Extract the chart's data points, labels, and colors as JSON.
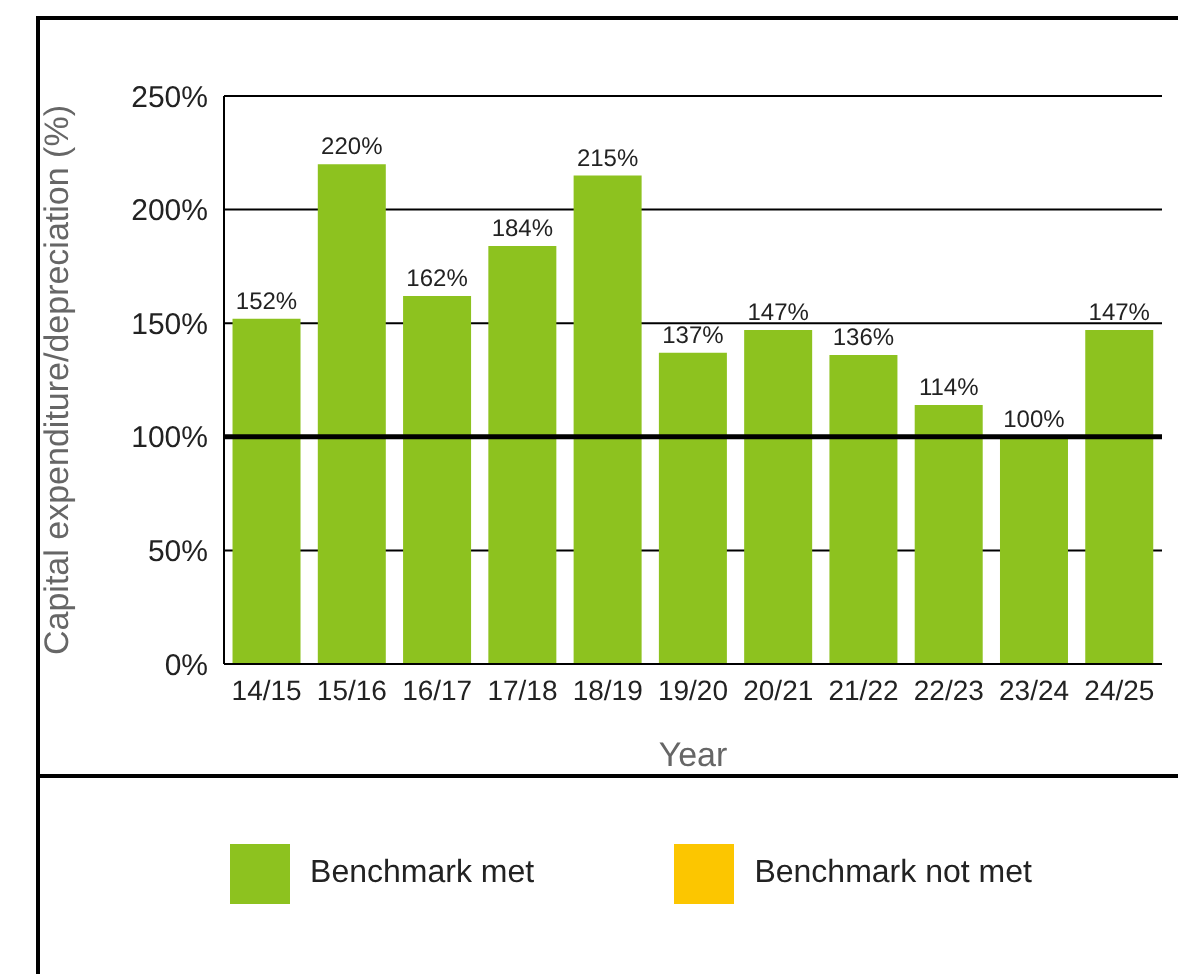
{
  "chart_data": {
    "type": "bar",
    "xlabel": "Year",
    "ylabel": "Capital expenditure/depreciation (%)",
    "categories": [
      "14/15",
      "15/16",
      "16/17",
      "17/18",
      "18/19",
      "19/20",
      "20/21",
      "21/22",
      "22/23",
      "23/24",
      "24/25"
    ],
    "series": [
      {
        "name": "Benchmark met",
        "color": "#8dc21f",
        "values": [
          152,
          220,
          162,
          184,
          215,
          137,
          147,
          136,
          114,
          100,
          147
        ],
        "value_labels": [
          "152%",
          "220%",
          "162%",
          "184%",
          "215%",
          "137%",
          "147%",
          "136%",
          "114%",
          "100%",
          "147%"
        ]
      },
      {
        "name": "Benchmark not met",
        "color": "#fcc600",
        "values": [
          null,
          null,
          null,
          null,
          null,
          null,
          null,
          null,
          null,
          null,
          null
        ]
      }
    ],
    "stacked": true,
    "ylim": [
      0,
      250
    ],
    "yticks": [
      {
        "value": 0,
        "label": "0%"
      },
      {
        "value": 50,
        "label": "50%"
      },
      {
        "value": 100,
        "label": "100%"
      },
      {
        "value": 150,
        "label": "150%"
      },
      {
        "value": 200,
        "label": "200%"
      },
      {
        "value": 250,
        "label": "250%"
      }
    ],
    "grid": "y",
    "legend": "bottom",
    "ref_lines": [
      {
        "axis": "y",
        "value": 100,
        "color": "#000000"
      }
    ]
  }
}
